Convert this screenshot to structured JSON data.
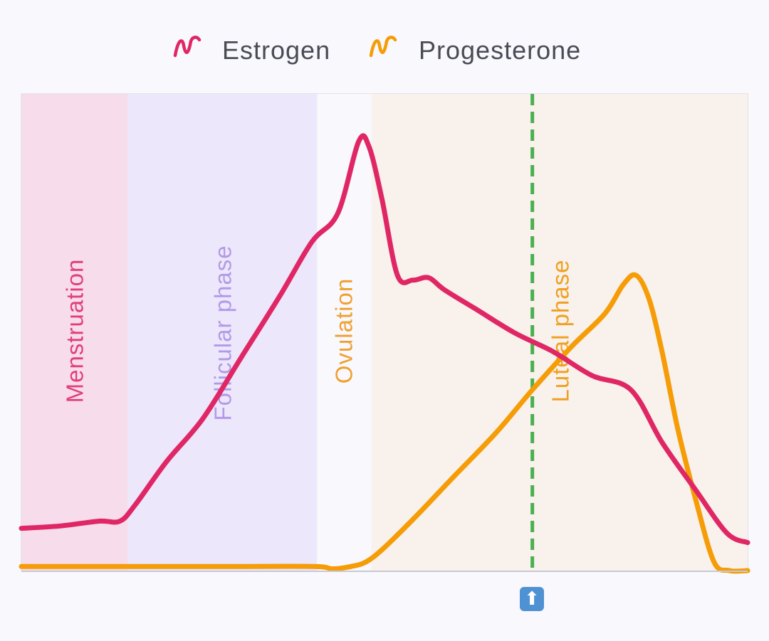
{
  "chart_data": {
    "type": "line",
    "title": "",
    "xlabel": "",
    "ylabel": "",
    "xlim": [
      0,
      28
    ],
    "ylim": [
      0,
      100
    ],
    "grid": false,
    "legend_position": "top-center",
    "phases": [
      {
        "label": "Menstruation",
        "start": 0,
        "end": 4.1,
        "fill": "#f7dceb",
        "text_color": "#e0407a"
      },
      {
        "label": "Follicular phase",
        "start": 4.1,
        "end": 11.4,
        "fill": "#ece7fa",
        "text_color": "#b39ae8"
      },
      {
        "label": "Ovulation",
        "start": 11.4,
        "end": 13.5,
        "fill": "#f8f8fd",
        "text_color": "#f0a030"
      },
      {
        "label": "Luteal phase",
        "start": 13.5,
        "end": 28,
        "fill": "#f8f1ec",
        "text_color": "#f0a020"
      }
    ],
    "marker": {
      "x": 19.7,
      "color": "#4caf50",
      "icon": "up-arrow-icon",
      "icon_glyph": "⬆"
    },
    "series": [
      {
        "name": "Estrogen",
        "color": "#e02765",
        "x": [
          0,
          1.5,
          3.0,
          3.8,
          4.4,
          5.6,
          7.0,
          8.5,
          10.0,
          11.2,
          12.2,
          13.0,
          13.4,
          13.9,
          14.5,
          15.1,
          15.7,
          16.3,
          17.5,
          19.0,
          20.5,
          22.0,
          23.5,
          24.7,
          26.0,
          27.2,
          28
        ],
        "values": [
          9,
          9.5,
          10.5,
          10.5,
          14,
          23,
          32,
          45,
          58,
          69,
          75,
          90,
          89,
          78,
          62,
          61,
          61.5,
          59,
          55,
          50,
          46,
          41,
          38,
          27,
          17,
          8,
          6
        ]
      },
      {
        "name": "Progesterone",
        "color": "#f59c06",
        "x": [
          0,
          4,
          8,
          11.3,
          12.0,
          12.7,
          13.3,
          14.0,
          15.3,
          16.7,
          18.3,
          19.7,
          21.2,
          22.5,
          23.2,
          23.7,
          24.2,
          24.7,
          25.3,
          26.0,
          26.7,
          27.3,
          28
        ],
        "values": [
          1,
          1,
          1,
          1,
          0.5,
          1,
          2,
          5,
          12,
          20,
          29,
          38,
          47,
          54,
          60,
          62,
          57,
          46,
          30,
          15,
          2,
          0,
          0
        ]
      }
    ]
  }
}
